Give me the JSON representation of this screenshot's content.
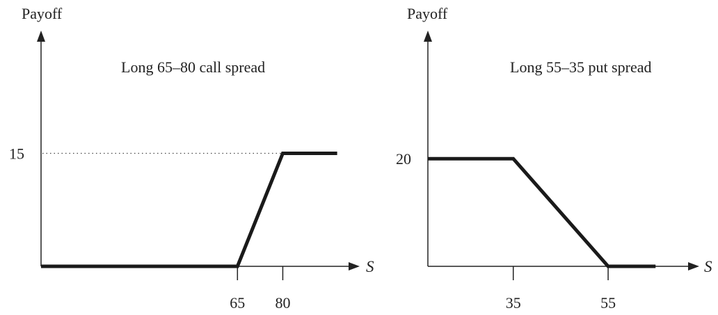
{
  "chart_data": [
    {
      "type": "line",
      "title": "Long 65–80 call spread",
      "ylabel": "Payoff",
      "xlabel": "S",
      "xlim": [
        0,
        102
      ],
      "ylim": [
        0,
        30
      ],
      "x_ticks": [
        "65",
        "80"
      ],
      "y_ticks": [
        "15"
      ],
      "reference_lines": [
        {
          "style": "dotted",
          "y": 15,
          "x_from": 0,
          "x_to": 80
        }
      ],
      "series": [
        {
          "x": [
            0,
            65,
            80,
            98
          ],
          "y": [
            0,
            0,
            15,
            15
          ]
        }
      ]
    },
    {
      "type": "line",
      "title": "Long 55–35 put spread",
      "ylabel": "Payoff",
      "xlabel": "S",
      "xlim": [
        17,
        72
      ],
      "ylim": [
        0,
        42
      ],
      "x_ticks": [
        "35",
        "55"
      ],
      "y_ticks": [
        "20"
      ],
      "series": [
        {
          "x": [
            17,
            35,
            55,
            65
          ],
          "y": [
            20,
            20,
            0,
            0
          ]
        }
      ]
    }
  ]
}
